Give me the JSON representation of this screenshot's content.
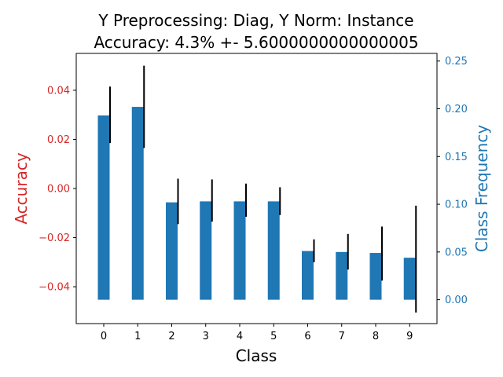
{
  "chart_data": {
    "type": "bar",
    "title_line1": "Y Preprocessing: Diag, Y Norm: Instance",
    "title_line2": "Accuracy: 4.3% +- 5.6000000000000005",
    "xlabel": "Class",
    "ylabel_left": "Accuracy",
    "ylabel_right": "Class Frequency",
    "categories": [
      "0",
      "1",
      "2",
      "3",
      "4",
      "5",
      "6",
      "7",
      "8",
      "9"
    ],
    "accuracy": {
      "ylim": [
        -0.055,
        0.055
      ],
      "ticks": [
        -0.04,
        -0.02,
        0.0,
        0.02,
        0.04
      ],
      "tick_labels": [
        "−0.04",
        "−0.02",
        "0.00",
        "0.02",
        "0.04"
      ],
      "color": "#d62728",
      "errorbars": [
        {
          "x": 0,
          "low": 0.0185,
          "high": 0.0415
        },
        {
          "x": 1,
          "low": 0.0165,
          "high": 0.05
        },
        {
          "x": 2,
          "low": -0.0145,
          "high": 0.004
        },
        {
          "x": 3,
          "low": -0.0135,
          "high": 0.0037
        },
        {
          "x": 4,
          "low": -0.0115,
          "high": 0.002
        },
        {
          "x": 5,
          "low": -0.0108,
          "high": 0.0005
        },
        {
          "x": 6,
          "low": -0.03,
          "high": -0.0207
        },
        {
          "x": 7,
          "low": -0.033,
          "high": -0.0185
        },
        {
          "x": 8,
          "low": -0.0375,
          "high": -0.0155
        },
        {
          "x": 9,
          "low": -0.0505,
          "high": -0.007
        }
      ]
    },
    "frequency": {
      "ylim": [
        -0.025,
        0.258
      ],
      "ticks": [
        0.0,
        0.05,
        0.1,
        0.15,
        0.2,
        0.25
      ],
      "tick_labels": [
        "0.00",
        "0.05",
        "0.10",
        "0.15",
        "0.20",
        "0.25"
      ],
      "color": "#1f77b4",
      "values": [
        0.193,
        0.202,
        0.102,
        0.103,
        0.103,
        0.103,
        0.051,
        0.05,
        0.049,
        0.044
      ]
    },
    "bar_color": "#1f77b4",
    "errorbar_color": "#000000",
    "grid": false
  }
}
